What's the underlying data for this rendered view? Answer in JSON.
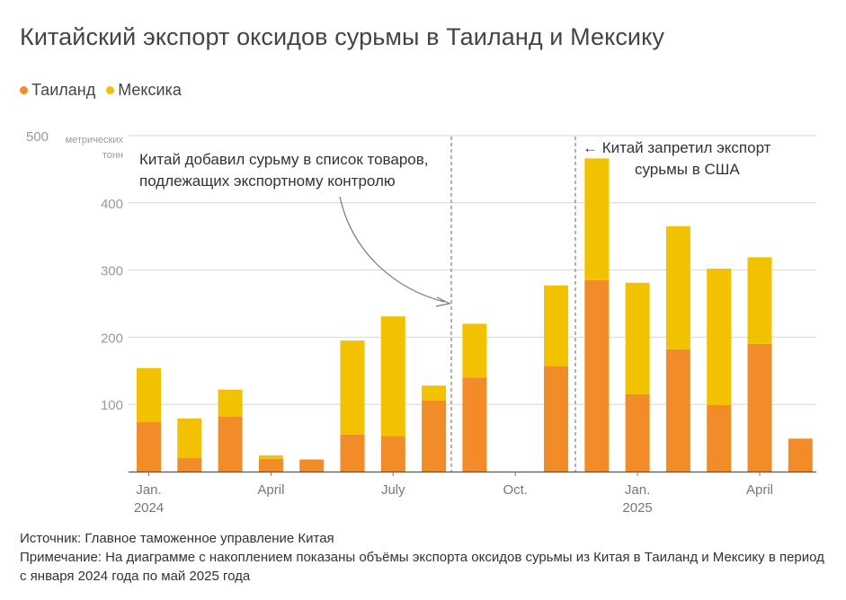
{
  "title": "Китайский экспорт оксидов сурьмы в Таиланд и Мексику",
  "legend": [
    {
      "label": "Таиланд",
      "color": "#f28c28"
    },
    {
      "label": "Мексика",
      "color": "#f2c200"
    }
  ],
  "annotations": {
    "left": [
      "Китай добавил сурьму в список товаров,",
      "подлежащих экспортному контролю"
    ],
    "right": [
      "← Китай запретил экспорт",
      "сурьмы в США"
    ]
  },
  "footer": {
    "source": "Источник: Главное таможенное управление Китая",
    "note": "Примечание: На диаграмме с накоплением показаны объёмы экспорта оксидов сурьмы из Китая в Таиланд и Мексику в период с января 2024 года по май 2025 года"
  },
  "chart_data": {
    "type": "bar",
    "stacked": true,
    "title": "Китайский экспорт оксидов сурьмы в Таиланд и Мексику",
    "ylabel": "метрических тонн",
    "ylim": [
      0,
      500
    ],
    "yticks": [
      {
        "value": 100,
        "label": "100"
      },
      {
        "value": 200,
        "label": "200"
      },
      {
        "value": 300,
        "label": "300"
      },
      {
        "value": 400,
        "label": "400"
      },
      {
        "value": 500,
        "label": "500"
      }
    ],
    "y_unit_lines": [
      "метрических",
      "тонн"
    ],
    "categories": [
      "2024-01",
      "2024-02",
      "2024-03",
      "2024-04",
      "2024-05",
      "2024-06",
      "2024-07",
      "2024-08",
      "2024-09",
      "2024-10",
      "2024-11",
      "2024-12",
      "2025-01",
      "2025-02",
      "2025-03",
      "2025-04",
      "2025-05"
    ],
    "x_tick_labels": [
      {
        "index": 0,
        "lines": [
          "Jan.",
          "2024"
        ]
      },
      {
        "index": 3,
        "lines": [
          "April"
        ]
      },
      {
        "index": 6,
        "lines": [
          "July"
        ]
      },
      {
        "index": 9,
        "lines": [
          "Oct."
        ]
      },
      {
        "index": 12,
        "lines": [
          "Jan.",
          "2025"
        ]
      },
      {
        "index": 15,
        "lines": [
          "April"
        ]
      }
    ],
    "series": [
      {
        "name": "Таиланд",
        "color": "#f28c28",
        "values": [
          74,
          20,
          82,
          19,
          18,
          55,
          53,
          106,
          140,
          0,
          157,
          285,
          115,
          182,
          99,
          190,
          49
        ]
      },
      {
        "name": "Мексика",
        "color": "#f2c200",
        "values": [
          80,
          59,
          40,
          5,
          0,
          140,
          178,
          22,
          80,
          0,
          120,
          181,
          166,
          183,
          203,
          129,
          0
        ]
      }
    ],
    "reference_lines": [
      {
        "position_between": [
          "2024-09",
          "2024-10"
        ],
        "style": "dashed"
      },
      {
        "position_between": [
          "2024-11",
          "2024-12"
        ],
        "style": "dashed"
      }
    ]
  }
}
